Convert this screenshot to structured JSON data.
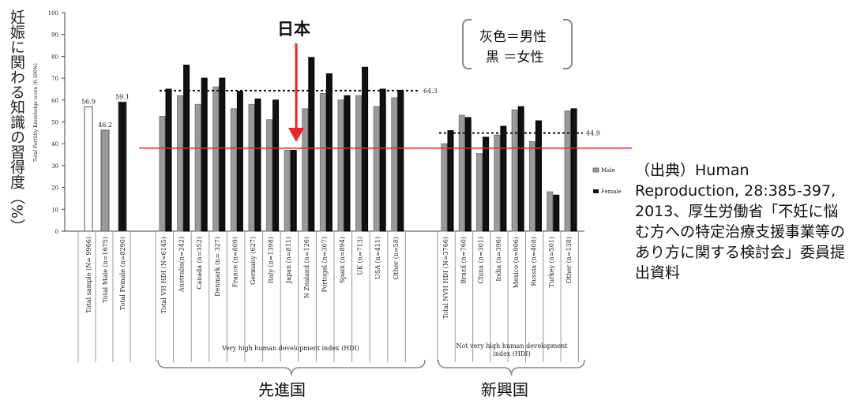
{
  "chart_data": {
    "type": "bar",
    "ylabel_main": "妊娠に関わる知識の習得度（%）",
    "ylabel_inner": "Total Fertility Knowledge score (0-100%)",
    "ylim": [
      0,
      100
    ],
    "yticks": [
      "0",
      "10",
      "20",
      "30",
      "40",
      "50",
      "60",
      "70",
      "80",
      "90",
      "100"
    ],
    "legend_inner": [
      "Male",
      "Female"
    ],
    "legend_box": [
      "灰色＝男性",
      "黒 ＝女性"
    ],
    "groups": {
      "total": {
        "categories": [
          "Total sample (N= 9966)",
          "Total Male (n=1675)",
          "Total Female (n=8290)"
        ],
        "values": [
          56.9,
          46.2,
          59.1
        ],
        "labels": [
          "56.9",
          "46.2",
          "59.1"
        ]
      },
      "vhhdi": {
        "title": "Very high human development index (HDI)",
        "ref_label": "64.3",
        "ref_value": 64.3,
        "categories": [
          "Total VH HDI (N=6145)",
          "Australia(n=242)",
          "Canada (n=352)",
          "Denmark (n= 327)",
          "France (n=809)",
          "Germany (627)",
          "Italy (n=1398)",
          "Japan (n=811)",
          "N Zealand (n=126)",
          "Portugal (n=307)",
          "Spain (n=894)",
          "UK (n=713)",
          "USA (n=411)",
          "Other (n=58)"
        ],
        "male": [
          52.5,
          62,
          58,
          66,
          56,
          58,
          51,
          37,
          56,
          63,
          60,
          62,
          57,
          61
        ],
        "female": [
          65,
          76,
          70,
          70,
          64,
          60.5,
          60,
          37,
          79.5,
          72,
          62,
          75,
          65,
          64.5
        ]
      },
      "nvhhdi": {
        "title": "Not very high human development index (HDI)",
        "ref_label": "44.9",
        "ref_value": 44.9,
        "categories": [
          "Total NVH HDI (N=3766)",
          "Brazil (n=760)",
          "China (n=301)",
          "India (n=396)",
          "Mexico (n=906)",
          "Russia (n=408)",
          "Turkey (n=501)",
          "Other (n=138)"
        ],
        "male": [
          40,
          53,
          35.5,
          44,
          55.5,
          41,
          18,
          55
        ],
        "female": [
          46,
          52,
          43,
          48,
          57,
          50.5,
          16.5,
          56
        ]
      }
    },
    "japan_line_value": 38,
    "colors": {
      "male": "#9a9a9a",
      "female": "#111111",
      "total": "#ffffff",
      "japan_line": "#e8262b",
      "arrow": "#e8262b"
    }
  },
  "annotations": {
    "japan": "日本",
    "group_left": "先進国",
    "group_right": "新興国",
    "source": "（出典）Human Reproduction, 28:385-397, 2013、厚生労働省「不妊に悩む方への特定治療支援事業等のあり方に関する検討会」委員提出資料"
  }
}
